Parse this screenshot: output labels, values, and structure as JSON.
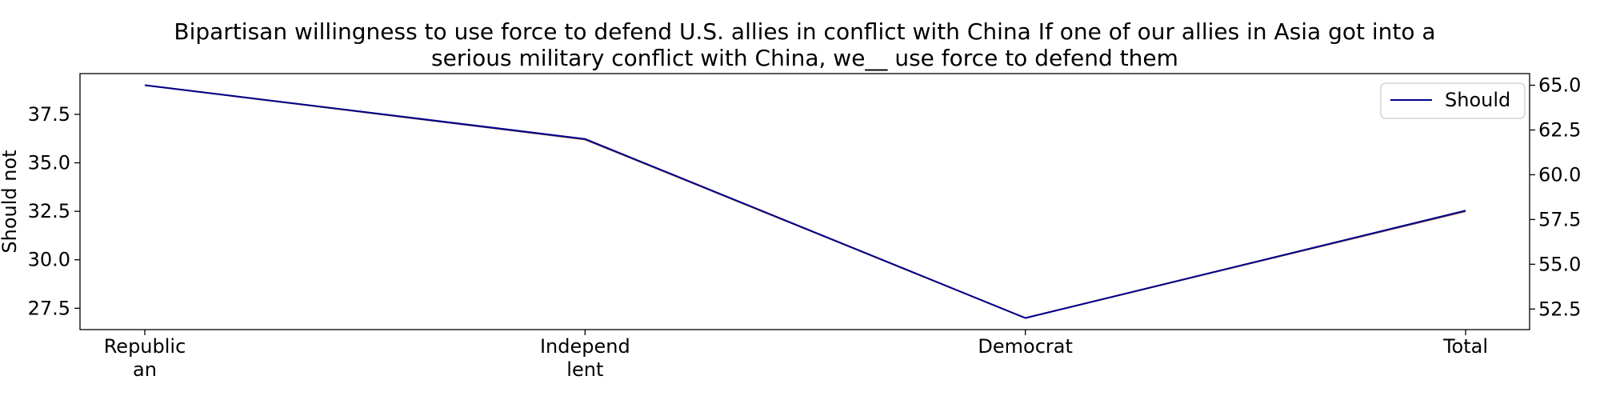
{
  "chart_data": {
    "type": "line",
    "title_lines": [
      "Bipartisan willingness to use force to defend U.S. allies in conflict with China If one of our allies in Asia got into a",
      "serious military conflict with China, we__ use force to defend them"
    ],
    "categories": [
      [
        "Republic",
        "an"
      ],
      [
        "Independ",
        "lent"
      ],
      [
        "Democrat"
      ],
      [
        "Total"
      ]
    ],
    "ylabel_left": "Should not",
    "ylabel_right": "",
    "left_axis": {
      "ylim": [
        26.4,
        39.6
      ],
      "ticks": [
        "27.5",
        "30.0",
        "32.5",
        "35.0",
        "37.5"
      ]
    },
    "right_axis": {
      "ylim": [
        51.35,
        65.65
      ],
      "ticks": [
        "52.5",
        "55.0",
        "57.5",
        "60.0",
        "62.5",
        "65.0"
      ]
    },
    "series": [
      {
        "axis": "left",
        "values": [
          39,
          36.2,
          27,
          32.5
        ],
        "color": "#8c564b"
      },
      {
        "name": "Should",
        "axis": "right",
        "values": [
          65,
          62,
          52,
          58
        ],
        "color": "#00008b"
      }
    ],
    "legend": {
      "position": "top-right",
      "entries": [
        "Should"
      ]
    },
    "grid": false
  }
}
